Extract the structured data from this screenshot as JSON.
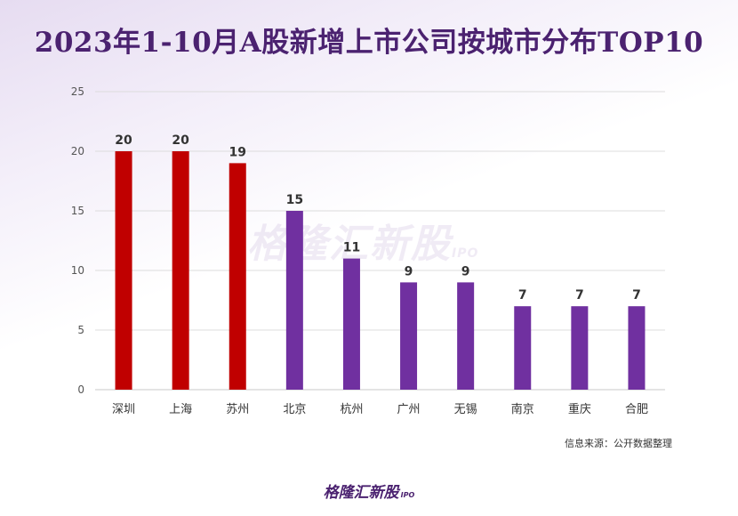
{
  "title": "2023年1-10月A股新增上市公司按城市分布TOP10",
  "source_note": "信息来源：公开数据整理",
  "watermark": {
    "text": "格隆汇新股",
    "suffix": "IPO"
  },
  "brand": {
    "text": "格隆汇新股",
    "suffix": "IPO"
  },
  "colors": {
    "highlight": "#c00000",
    "default": "#7030a0",
    "title": "#4b2270"
  },
  "chart_data": {
    "type": "bar",
    "title": "2023年1-10月A股新增上市公司按城市分布TOP10",
    "xlabel": "",
    "ylabel": "",
    "categories": [
      "深圳",
      "上海",
      "苏州",
      "北京",
      "杭州",
      "广州",
      "无锡",
      "南京",
      "重庆",
      "合肥"
    ],
    "values": [
      20,
      20,
      19,
      15,
      11,
      9,
      9,
      7,
      7,
      7
    ],
    "bar_colors": [
      "#c00000",
      "#c00000",
      "#c00000",
      "#7030a0",
      "#7030a0",
      "#7030a0",
      "#7030a0",
      "#7030a0",
      "#7030a0",
      "#7030a0"
    ],
    "ylim": [
      0,
      25
    ],
    "yticks": [
      0,
      5,
      10,
      15,
      20,
      25
    ],
    "grid": true,
    "data_labels": true,
    "legend": "none"
  }
}
